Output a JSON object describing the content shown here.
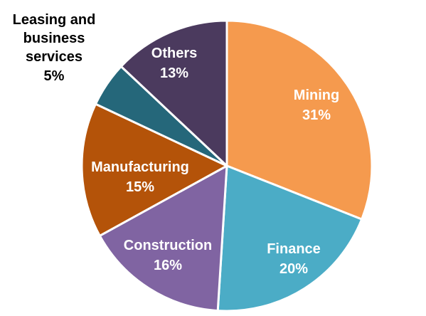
{
  "chart_data": {
    "type": "pie",
    "start_angle_deg": 0,
    "direction": "clockwise",
    "slices": [
      {
        "label": "Mining",
        "value": 31,
        "value_text": "31%",
        "color": "#F59A4E",
        "text_color": "#ffffff"
      },
      {
        "label": "Finance",
        "value": 20,
        "value_text": "20%",
        "color": "#4BACC6",
        "text_color": "#ffffff"
      },
      {
        "label": "Construction",
        "value": 16,
        "value_text": "16%",
        "color": "#8064A2",
        "text_color": "#ffffff"
      },
      {
        "label": "Manufacturing",
        "value": 15,
        "value_text": "15%",
        "color": "#B45309",
        "text_color": "#ffffff"
      },
      {
        "label": "Leasing and business services",
        "label_lines": [
          "Leasing and",
          "business",
          "services"
        ],
        "value": 5,
        "value_text": "5%",
        "color": "#25677A",
        "text_color": "#000000",
        "label_outside": true
      },
      {
        "label": "Others",
        "value": 13,
        "value_text": "13%",
        "color": "#4B3A5E",
        "text_color": "#ffffff"
      }
    ]
  }
}
